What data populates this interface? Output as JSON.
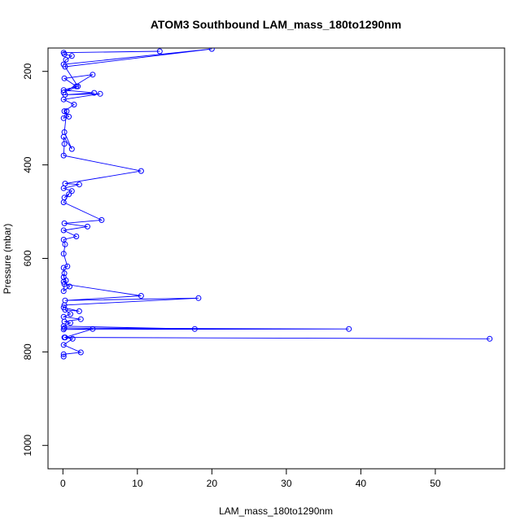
{
  "chart_data": {
    "type": "line",
    "title": "ATOM3 Southbound LAM_mass_180to1290nm",
    "xlabel": "LAM_mass_180to1290nm",
    "ylabel": "Pressure (mbar)",
    "xlim": [
      -2,
      59.3
    ],
    "ylim": [
      1050,
      150
    ],
    "y_inverted": true,
    "xticks": [
      0,
      10,
      20,
      30,
      40,
      50
    ],
    "yticks": [
      200,
      400,
      600,
      800,
      1000
    ],
    "grid": false,
    "legend": "none",
    "marker": "open-circle",
    "colors": {
      "series": "#0000ff",
      "axis": "#000000"
    },
    "series": [
      {
        "x": [
          13.0,
          0.1,
          0.2,
          1.2,
          0.4,
          0.1,
          20.0,
          0.3,
          2.0,
          0.1,
          4.0,
          0.2,
          1.8,
          0.1,
          4.2,
          0.3,
          5.0,
          0.1,
          1.5,
          0.2,
          0.8,
          0.1,
          0.5,
          0.2,
          1.2,
          0.1,
          0.2,
          0.1,
          10.5,
          0.3,
          2.2,
          0.1,
          1.2,
          0.2,
          0.8,
          0.1,
          5.2,
          0.2,
          3.3,
          0.1,
          1.8,
          0.1,
          0.3,
          0.1,
          0.6,
          0.1,
          0.2,
          0.1,
          0.4,
          0.1,
          0.9,
          0.1,
          0.2,
          10.5,
          0.3,
          18.2,
          0.2,
          0.1,
          2.2,
          0.3,
          1.0,
          0.1,
          2.4,
          0.2,
          1.0,
          0.1,
          17.7,
          0.2,
          38.4,
          0.1,
          4.0,
          0.3,
          57.3,
          0.2,
          1.3,
          0.1,
          2.4,
          0.1,
          0.1
        ],
        "y": [
          157,
          160,
          163,
          167,
          175,
          185,
          152,
          190,
          232,
          245,
          207,
          215,
          232,
          240,
          246,
          250,
          248,
          260,
          271,
          285,
          297,
          300,
          285,
          330,
          366,
          340,
          355,
          380,
          413,
          440,
          442,
          450,
          456,
          470,
          463,
          480,
          518,
          525,
          532,
          540,
          553,
          560,
          570,
          590,
          617,
          620,
          632,
          640,
          647,
          650,
          660,
          670,
          655,
          680,
          690,
          685,
          700,
          705,
          713,
          710,
          719,
          725,
          730,
          735,
          738,
          745,
          751,
          749,
          751,
          752,
          751,
          769,
          772,
          769,
          772,
          785,
          801,
          805,
          810
        ]
      }
    ]
  }
}
